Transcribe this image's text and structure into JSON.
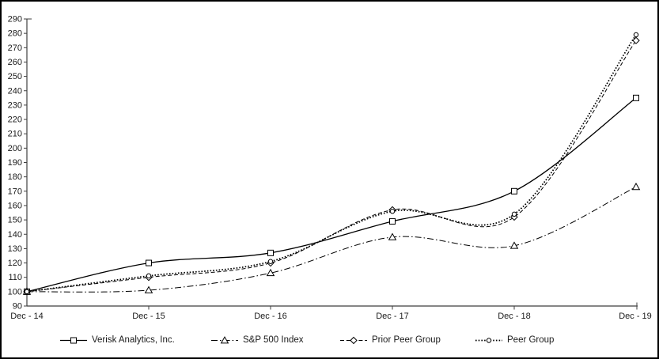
{
  "chart_data": {
    "type": "line",
    "title": "",
    "xlabel": "",
    "ylabel": "",
    "grid": false,
    "legend_position": "bottom",
    "x_categories": [
      "Dec - 14",
      "Dec - 15",
      "Dec - 16",
      "Dec - 17",
      "Dec - 18",
      "Dec - 19"
    ],
    "ylim": [
      90,
      290
    ],
    "ytick_step": 10,
    "series": [
      {
        "name": "Verisk Analytics, Inc.",
        "line": "solid",
        "marker": "square",
        "color": "#000000",
        "values": [
          100,
          120,
          127,
          149,
          170,
          235
        ]
      },
      {
        "name": "S&P 500 Index",
        "line": "dash-dot",
        "marker": "triangle",
        "color": "#000000",
        "values": [
          100,
          101,
          113,
          138,
          132,
          173
        ]
      },
      {
        "name": "Prior Peer Group",
        "line": "dashed",
        "marker": "diamond",
        "color": "#000000",
        "values": [
          100,
          110,
          120,
          157,
          152,
          275
        ]
      },
      {
        "name": "Peer Group",
        "line": "dotted",
        "marker": "circle",
        "color": "#000000",
        "values": [
          100,
          111,
          121,
          156,
          154,
          279
        ]
      }
    ],
    "colors": {
      "background": "#ffffff",
      "frame_border": "#000000",
      "axis": "#3f3f3f",
      "tick_text": "#1a1a1a"
    }
  }
}
